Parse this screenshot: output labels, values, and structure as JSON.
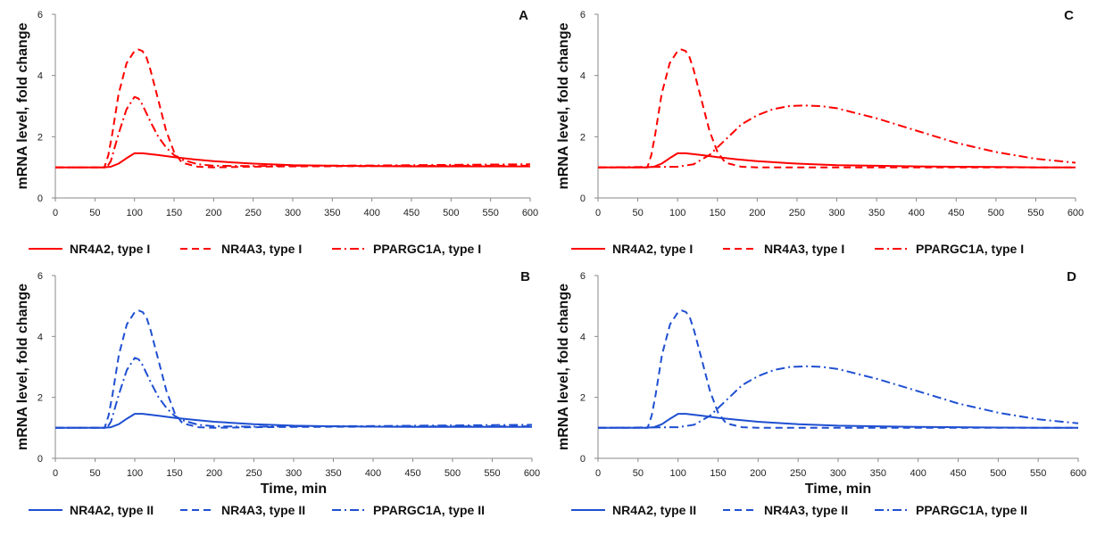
{
  "chart_data": [
    {
      "type": "line",
      "panel_label": "A",
      "ylabel": "mRNA level, fold change",
      "xlabel": "",
      "xlim": [
        0,
        600
      ],
      "ylim": [
        0,
        6
      ],
      "x_ticks": [
        "0",
        "50",
        "100",
        "150",
        "200",
        "250",
        "300",
        "350",
        "400",
        "450",
        "500",
        "550",
        "600"
      ],
      "y_ticks": [
        "0",
        "2",
        "4",
        "6"
      ],
      "color": "#ff0000",
      "legend_position": "bottom",
      "series": [
        {
          "name": "NR4A2, type I",
          "style": "solid",
          "x": [
            0,
            60,
            70,
            80,
            90,
            100,
            110,
            130,
            150,
            175,
            200,
            250,
            300,
            350,
            400,
            450,
            500,
            550,
            600
          ],
          "y": [
            1,
            1,
            1.02,
            1.12,
            1.3,
            1.46,
            1.46,
            1.4,
            1.33,
            1.26,
            1.2,
            1.12,
            1.07,
            1.05,
            1.04,
            1.03,
            1.03,
            1.03,
            1.03
          ]
        },
        {
          "name": "NR4A3, type I",
          "style": "dash",
          "x": [
            0,
            62,
            67,
            72,
            80,
            90,
            100,
            105,
            110,
            115,
            120,
            130,
            140,
            150,
            160,
            180,
            200,
            250,
            300,
            400,
            500,
            600
          ],
          "y": [
            1,
            1,
            1.4,
            2.1,
            3.4,
            4.4,
            4.8,
            4.85,
            4.8,
            4.6,
            4.2,
            3.2,
            2.2,
            1.5,
            1.15,
            1.02,
            1.0,
            1.02,
            1.03,
            1.04,
            1.05,
            1.05
          ]
        },
        {
          "name": "PPARGC1A, type I",
          "style": "dashdot",
          "x": [
            0,
            65,
            70,
            80,
            90,
            100,
            105,
            110,
            120,
            130,
            140,
            150,
            160,
            180,
            200,
            250,
            300,
            400,
            500,
            600
          ],
          "y": [
            1,
            1,
            1.2,
            2.1,
            2.9,
            3.3,
            3.25,
            3.05,
            2.5,
            2.0,
            1.65,
            1.4,
            1.25,
            1.1,
            1.05,
            1.04,
            1.05,
            1.06,
            1.08,
            1.1
          ]
        }
      ]
    },
    {
      "type": "line",
      "panel_label": "C",
      "ylabel": "mRNA level, fold change",
      "xlabel": "",
      "xlim": [
        0,
        600
      ],
      "ylim": [
        0,
        6
      ],
      "x_ticks": [
        "0",
        "50",
        "100",
        "150",
        "200",
        "250",
        "300",
        "350",
        "400",
        "450",
        "500",
        "550",
        "600"
      ],
      "y_ticks": [
        "0",
        "2",
        "4",
        "6"
      ],
      "color": "#ff0000",
      "legend_position": "bottom",
      "series": [
        {
          "name": "NR4A2, type I",
          "style": "solid",
          "x": [
            0,
            60,
            70,
            80,
            90,
            100,
            110,
            130,
            150,
            175,
            200,
            250,
            300,
            350,
            400,
            450,
            500,
            550,
            600
          ],
          "y": [
            1,
            1,
            1.02,
            1.12,
            1.3,
            1.46,
            1.46,
            1.4,
            1.33,
            1.26,
            1.2,
            1.12,
            1.07,
            1.05,
            1.03,
            1.02,
            1.01,
            1.0,
            1.0
          ]
        },
        {
          "name": "NR4A3, type I",
          "style": "dash",
          "x": [
            0,
            62,
            67,
            72,
            80,
            90,
            100,
            105,
            110,
            115,
            120,
            130,
            140,
            150,
            160,
            180,
            200,
            250,
            300,
            400,
            500,
            600
          ],
          "y": [
            1,
            1,
            1.4,
            2.1,
            3.4,
            4.4,
            4.8,
            4.85,
            4.8,
            4.6,
            4.2,
            3.2,
            2.2,
            1.5,
            1.15,
            1.02,
            1.0,
            1.0,
            1.0,
            1.0,
            1.0,
            1.0
          ]
        },
        {
          "name": "PPARGC1A, type I",
          "style": "dashdot",
          "x": [
            0,
            100,
            120,
            140,
            160,
            180,
            200,
            220,
            240,
            260,
            280,
            300,
            350,
            400,
            450,
            500,
            550,
            600
          ],
          "y": [
            1,
            1.02,
            1.1,
            1.4,
            1.9,
            2.4,
            2.7,
            2.9,
            3.0,
            3.02,
            3.0,
            2.93,
            2.6,
            2.2,
            1.8,
            1.5,
            1.28,
            1.15
          ]
        }
      ]
    },
    {
      "type": "line",
      "panel_label": "B",
      "ylabel": "mRNA level, fold change",
      "xlabel": "Time, min",
      "xlim": [
        0,
        600
      ],
      "ylim": [
        0,
        6
      ],
      "x_ticks": [
        "0",
        "50",
        "100",
        "150",
        "200",
        "250",
        "300",
        "350",
        "400",
        "450",
        "500",
        "550",
        "600"
      ],
      "y_ticks": [
        "0",
        "2",
        "4",
        "6"
      ],
      "color": "#1f4fd1",
      "legend_position": "bottom",
      "series": [
        {
          "name": "NR4A2, type II",
          "style": "solid",
          "x": [
            0,
            60,
            70,
            80,
            90,
            100,
            110,
            130,
            150,
            175,
            200,
            250,
            300,
            350,
            400,
            450,
            500,
            550,
            600
          ],
          "y": [
            1,
            1,
            1.02,
            1.12,
            1.3,
            1.46,
            1.46,
            1.4,
            1.33,
            1.26,
            1.2,
            1.12,
            1.07,
            1.05,
            1.04,
            1.03,
            1.03,
            1.03,
            1.03
          ]
        },
        {
          "name": "NR4A3, type II",
          "style": "dash",
          "x": [
            0,
            62,
            67,
            72,
            80,
            90,
            100,
            105,
            110,
            115,
            120,
            130,
            140,
            150,
            160,
            180,
            200,
            250,
            300,
            400,
            500,
            600
          ],
          "y": [
            1,
            1,
            1.4,
            2.1,
            3.4,
            4.4,
            4.8,
            4.85,
            4.8,
            4.6,
            4.2,
            3.2,
            2.2,
            1.5,
            1.15,
            1.02,
            1.0,
            1.02,
            1.03,
            1.04,
            1.05,
            1.05
          ]
        },
        {
          "name": "PPARGC1A, type II",
          "style": "dashdot",
          "x": [
            0,
            65,
            70,
            80,
            90,
            100,
            105,
            110,
            120,
            130,
            140,
            150,
            160,
            180,
            200,
            250,
            300,
            400,
            500,
            600
          ],
          "y": [
            1,
            1,
            1.2,
            2.1,
            2.9,
            3.3,
            3.25,
            3.05,
            2.5,
            2.0,
            1.65,
            1.4,
            1.25,
            1.1,
            1.05,
            1.04,
            1.05,
            1.06,
            1.08,
            1.1
          ]
        }
      ]
    },
    {
      "type": "line",
      "panel_label": "D",
      "ylabel": "mRNA level, fold change",
      "xlabel": "Time, min",
      "xlim": [
        0,
        600
      ],
      "ylim": [
        0,
        6
      ],
      "x_ticks": [
        "0",
        "50",
        "100",
        "150",
        "200",
        "250",
        "300",
        "350",
        "400",
        "450",
        "500",
        "550",
        "600"
      ],
      "y_ticks": [
        "0",
        "2",
        "4",
        "6"
      ],
      "color": "#1f4fd1",
      "legend_position": "bottom",
      "series": [
        {
          "name": "NR4A2, type II",
          "style": "solid",
          "x": [
            0,
            60,
            70,
            80,
            90,
            100,
            110,
            130,
            150,
            175,
            200,
            250,
            300,
            350,
            400,
            450,
            500,
            550,
            600
          ],
          "y": [
            1,
            1,
            1.02,
            1.12,
            1.3,
            1.46,
            1.46,
            1.4,
            1.33,
            1.26,
            1.2,
            1.12,
            1.07,
            1.05,
            1.03,
            1.02,
            1.01,
            1.0,
            1.0
          ]
        },
        {
          "name": "NR4A3, type II",
          "style": "dash",
          "x": [
            0,
            62,
            67,
            72,
            80,
            90,
            100,
            105,
            110,
            115,
            120,
            130,
            140,
            150,
            160,
            180,
            200,
            250,
            300,
            400,
            500,
            600
          ],
          "y": [
            1,
            1,
            1.4,
            2.1,
            3.4,
            4.4,
            4.8,
            4.85,
            4.8,
            4.6,
            4.2,
            3.2,
            2.2,
            1.5,
            1.15,
            1.02,
            1.0,
            1.0,
            1.0,
            1.0,
            1.0,
            1.0
          ]
        },
        {
          "name": "PPARGC1A, type II",
          "style": "dashdot",
          "x": [
            0,
            100,
            120,
            140,
            160,
            180,
            200,
            220,
            240,
            260,
            280,
            300,
            350,
            400,
            450,
            500,
            550,
            600
          ],
          "y": [
            1,
            1.02,
            1.1,
            1.4,
            1.9,
            2.4,
            2.7,
            2.9,
            3.0,
            3.02,
            3.0,
            2.93,
            2.6,
            2.2,
            1.8,
            1.5,
            1.28,
            1.15
          ]
        }
      ]
    }
  ]
}
